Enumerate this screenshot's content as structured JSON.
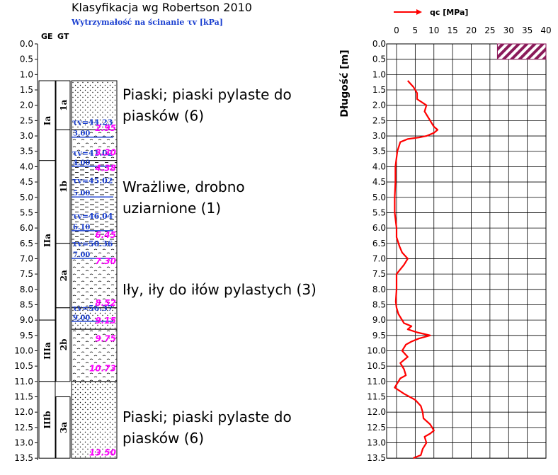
{
  "chart_data": [
    {
      "type": "table",
      "title": "Klasyfikacja wg Robertson 2010",
      "subtitle": "Wytrzymałość na ścinanie τv [kPa]",
      "column_headers": {
        "ge": "GE",
        "gt": "GT"
      },
      "depth_ticks": [
        "0.0",
        "0.5",
        "1.0",
        "1.5",
        "2.0",
        "2.5",
        "3.0",
        "3.5",
        "4.0",
        "4.5",
        "5.0",
        "5.5",
        "6.0",
        "6.5",
        "7.0",
        "7.5",
        "8.0",
        "8.5",
        "9.0",
        "9.5",
        "10.0",
        "10.5",
        "11.0",
        "11.5",
        "12.0",
        "12.5",
        "13.0",
        "13.5"
      ],
      "depth_range": [
        0,
        13.5
      ],
      "ge_units": [
        {
          "label": "Ia",
          "top": 1.2,
          "bottom": 3.8
        },
        {
          "label": "IIa",
          "top": 3.8,
          "bottom": 9.0
        },
        {
          "label": "IIIa",
          "top": 9.0,
          "bottom": 11.0
        },
        {
          "label": "IIIb",
          "top": 11.0,
          "bottom": 13.5
        }
      ],
      "gt_units": [
        {
          "label": "1a",
          "top": 1.2,
          "bottom": 2.8
        },
        {
          "label": "1b",
          "top": 2.8,
          "bottom": 6.5
        },
        {
          "label": "2a",
          "top": 6.5,
          "bottom": 8.6
        },
        {
          "label": "2b",
          "top": 8.6,
          "bottom": 11.0
        },
        {
          "label": "3a",
          "top": 11.5,
          "bottom": 13.5
        }
      ],
      "lithology": [
        {
          "type": "sand",
          "top": 1.2,
          "bottom": 2.8
        },
        {
          "type": "silt",
          "top": 2.8,
          "bottom": 3.8
        },
        {
          "type": "clay",
          "top": 3.8,
          "bottom": 6.5
        },
        {
          "type": "silt",
          "top": 6.5,
          "bottom": 8.6
        },
        {
          "type": "sand",
          "top": 8.6,
          "bottom": 9.3
        },
        {
          "type": "silt",
          "top": 9.3,
          "bottom": 11.0
        },
        {
          "type": "sand",
          "top": 11.0,
          "bottom": 13.5
        }
      ],
      "shear_strength": [
        {
          "text": "τv=44.23",
          "depth": 2.55
        },
        {
          "text": "τv=41.02",
          "depth": 3.55
        },
        {
          "text": "τv=45.02",
          "depth": 4.45
        },
        {
          "text": "τv=46.04",
          "depth": 5.6
        },
        {
          "text": "τv=50.36",
          "depth": 6.5
        },
        {
          "text": "τv=56.37",
          "depth": 8.6
        }
      ],
      "boundary_depths": [
        {
          "text": "3.00",
          "depth": 2.9
        },
        {
          "text": "4.00",
          "depth": 3.85
        },
        {
          "text": "5.00",
          "depth": 4.85
        },
        {
          "text": "6.10",
          "depth": 5.95
        },
        {
          "text": "7.00",
          "depth": 6.85
        },
        {
          "text": "9.00",
          "depth": 8.9
        }
      ],
      "sample_depths": [
        {
          "text": "2.95",
          "depth": 2.72
        },
        {
          "text": "3.30",
          "depth": 3.52
        },
        {
          "text": "4.38",
          "depth": 4.03
        },
        {
          "text": "6.45",
          "depth": 6.2
        },
        {
          "text": "7.30",
          "depth": 7.06
        },
        {
          "text": "8.52",
          "depth": 8.42
        },
        {
          "text": "9.15",
          "depth": 9.0
        },
        {
          "text": "9.75",
          "depth": 9.58
        },
        {
          "text": "10.73",
          "depth": 10.55
        },
        {
          "text": "13.50",
          "depth": 13.3
        }
      ],
      "classes": [
        {
          "line1": "Piaski; piaski pylaste do",
          "line2": "piasków (6)",
          "depth": 2.0
        },
        {
          "line1": "Wrażliwe, drobno",
          "line2": "uziarnione (1)",
          "depth": 5.0
        },
        {
          "line1": "Iły, iły do iłów pylastych (3)",
          "line2": "",
          "depth": 8.0
        },
        {
          "line1": "Piaski; piaski pylaste do",
          "line2": "piasków (6)",
          "depth": 12.5
        }
      ]
    },
    {
      "type": "line",
      "legend": "qc [MPa]",
      "ylabel": "Długość [m]",
      "xlim": [
        0,
        40
      ],
      "ylim": [
        0,
        13.5
      ],
      "x_ticks": [
        "0",
        "5",
        "10",
        "15",
        "20",
        "25",
        "30",
        "35",
        "40"
      ],
      "y_ticks": [
        "0.0",
        "0.5",
        "1.0",
        "1.5",
        "2.0",
        "2.5",
        "3.0",
        "3.5",
        "4.0",
        "4.5",
        "5.0",
        "5.5",
        "6.0",
        "6.5",
        "7.0",
        "7.5",
        "8.0",
        "8.5",
        "9.0",
        "9.5",
        "10.0",
        "10.5",
        "11.0",
        "11.5",
        "12.0",
        "12.5",
        "13.0",
        "13.5"
      ],
      "predrill": {
        "x_from": 27,
        "x_to": 40,
        "depth_from": 0.0,
        "depth_to": 0.5
      },
      "series": [
        {
          "name": "qc",
          "color": "#ff0000",
          "x": [
            3.0,
            4.5,
            5.5,
            5.5,
            8.0,
            7.5,
            8.5,
            9.5,
            10.0,
            11.0,
            10.0,
            8.0,
            6.0,
            3.0,
            1.0,
            0.2,
            -0.3,
            -0.3,
            -0.5,
            -0.5,
            0.0,
            0.0,
            0.8,
            1.5,
            3.0,
            2.0,
            0.0,
            0.0,
            -0.2,
            0.0,
            0.5,
            1.5,
            2.0,
            4.0,
            3.0,
            5.5,
            9.0,
            6.0,
            4.0,
            2.5,
            1.5,
            3.0,
            1.0,
            2.0,
            2.5,
            1.0,
            0.5,
            0.0,
            -0.5,
            2.0,
            5.0,
            6.5,
            7.0,
            7.2,
            9.0,
            10.0,
            9.0,
            7.5,
            8.0,
            7.0,
            6.5,
            4.5
          ],
          "y": [
            1.2,
            1.4,
            1.6,
            1.8,
            2.0,
            2.2,
            2.4,
            2.6,
            2.7,
            2.8,
            2.9,
            3.0,
            3.05,
            3.1,
            3.2,
            3.5,
            4.0,
            4.5,
            5.0,
            5.5,
            6.0,
            6.3,
            6.6,
            6.8,
            7.0,
            7.2,
            7.5,
            8.0,
            8.4,
            8.6,
            8.8,
            9.0,
            9.1,
            9.2,
            9.3,
            9.4,
            9.5,
            9.6,
            9.7,
            9.8,
            10.0,
            10.2,
            10.4,
            10.6,
            10.8,
            10.9,
            11.0,
            11.1,
            11.2,
            11.4,
            11.6,
            11.8,
            12.0,
            12.2,
            12.4,
            12.6,
            12.7,
            12.8,
            13.0,
            13.2,
            13.4,
            13.5
          ]
        }
      ]
    }
  ]
}
